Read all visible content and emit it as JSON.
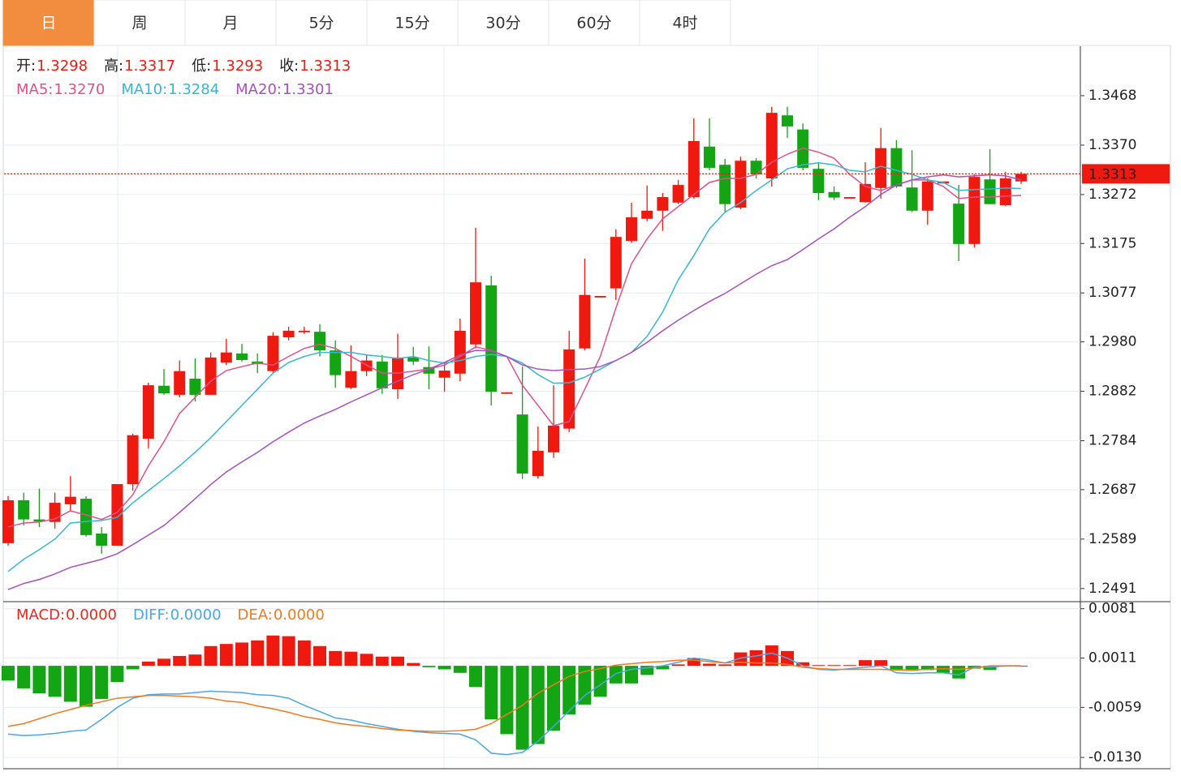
{
  "tabs": [
    "日",
    "周",
    "月",
    "5分",
    "15分",
    "30分",
    "60分",
    "4时"
  ],
  "active_tab": 0,
  "chart_data": [
    {
      "type": "candlestick",
      "readout": [
        {
          "name": "开:",
          "value": 1.3298
        },
        {
          "name": "高:",
          "value": 1.3317
        },
        {
          "name": "低:",
          "value": 1.3293
        },
        {
          "name": "收:",
          "value": 1.3313
        }
      ],
      "open": [
        1.2581,
        1.2666,
        1.2628,
        1.2623,
        1.2658,
        1.2669,
        1.26,
        1.2576,
        1.2698,
        1.2788,
        1.2893,
        1.2875,
        1.2907,
        1.2875,
        1.2939,
        1.2957,
        1.2941,
        1.2922,
        1.2989,
        1.2999,
        1.3,
        1.2963,
        1.2889,
        1.2922,
        1.2941,
        1.2886,
        1.2949,
        1.293,
        1.2909,
        1.2917,
        1.2975,
        1.3092,
        1.2877,
        1.2836,
        1.2714,
        1.2761,
        1.2808,
        1.2967,
        1.3068,
        1.3086,
        1.318,
        1.3224,
        1.324,
        1.3256,
        1.3267,
        1.3367,
        1.3331,
        1.3246,
        1.3339,
        1.3304,
        1.3429,
        1.3401,
        1.3323,
        1.3277,
        1.3264,
        1.3257,
        1.3285,
        1.3364,
        1.3286,
        1.324,
        1.3294,
        1.3254,
        1.3174,
        1.3302,
        1.3251,
        1.3298
      ],
      "high": [
        1.2674,
        1.2681,
        1.2689,
        1.2681,
        1.2714,
        1.2674,
        1.2613,
        1.2698,
        1.2798,
        1.2899,
        1.2926,
        1.2943,
        1.2947,
        1.2959,
        1.2986,
        1.2976,
        1.2957,
        1.2999,
        1.301,
        1.301,
        1.3015,
        1.2983,
        1.2973,
        1.2955,
        1.2954,
        1.2996,
        1.297,
        1.2971,
        1.2938,
        1.3026,
        1.3206,
        1.3111,
        1.288,
        1.2931,
        1.2812,
        1.2894,
        1.3002,
        1.3145,
        1.3071,
        1.3203,
        1.3256,
        1.329,
        1.3275,
        1.3301,
        1.3423,
        1.3423,
        1.3343,
        1.3347,
        1.3344,
        1.3446,
        1.3446,
        1.3413,
        1.3336,
        1.3288,
        1.3267,
        1.3336,
        1.3404,
        1.338,
        1.336,
        1.3304,
        1.3298,
        1.3291,
        1.3312,
        1.3362,
        1.3317,
        1.3317
      ],
      "low": [
        1.2576,
        1.2616,
        1.2613,
        1.261,
        1.2645,
        1.2594,
        1.256,
        1.2576,
        1.2685,
        1.2769,
        1.2875,
        1.287,
        1.2862,
        1.2875,
        1.2934,
        1.2941,
        1.2918,
        1.2918,
        1.2983,
        1.2996,
        1.2951,
        1.2889,
        1.2886,
        1.2912,
        1.2877,
        1.2867,
        1.2934,
        1.2886,
        1.2881,
        1.2902,
        1.2967,
        1.2854,
        1.2877,
        1.2708,
        1.2709,
        1.275,
        1.2801,
        1.2963,
        1.3068,
        1.3063,
        1.3176,
        1.3219,
        1.32,
        1.3253,
        1.3264,
        1.332,
        1.3237,
        1.3243,
        1.3304,
        1.3288,
        1.3384,
        1.332,
        1.3261,
        1.3261,
        1.3264,
        1.3256,
        1.3264,
        1.3285,
        1.3237,
        1.3212,
        1.3294,
        1.314,
        1.3167,
        1.3253,
        1.3249,
        1.3293
      ],
      "close": [
        1.2666,
        1.2628,
        1.2624,
        1.2661,
        1.2673,
        1.2597,
        1.2576,
        1.2698,
        1.2795,
        1.2894,
        1.2878,
        1.2922,
        1.2875,
        1.2949,
        1.2959,
        1.2944,
        1.2936,
        1.2992,
        1.3002,
        1.3002,
        1.2963,
        1.2914,
        1.2922,
        1.2943,
        1.2888,
        1.2949,
        1.2941,
        1.2917,
        1.2923,
        1.3002,
        1.3098,
        1.2881,
        1.288,
        1.2719,
        1.2764,
        1.2814,
        1.2965,
        1.3073,
        1.3071,
        1.3188,
        1.3227,
        1.324,
        1.3267,
        1.3291,
        1.3378,
        1.3325,
        1.3253,
        1.3339,
        1.3312,
        1.3434,
        1.3407,
        1.3325,
        1.3275,
        1.3266,
        1.3267,
        1.3293,
        1.3364,
        1.3288,
        1.324,
        1.3298,
        1.3298,
        1.3174,
        1.3307,
        1.3253,
        1.3304,
        1.3313
      ],
      "up_color": "#f0190f",
      "down_color": "#14a514",
      "series": [
        {
          "name": "MA5:",
          "legend_value": "1.3270",
          "color": "#e0508c",
          "values": [
            1.2613,
            1.2621,
            1.2623,
            1.2629,
            1.2645,
            1.2637,
            1.2628,
            1.2642,
            1.2677,
            1.2734,
            1.2782,
            1.2838,
            1.287,
            1.2902,
            1.2923,
            1.2931,
            1.2938,
            1.2934,
            1.2951,
            1.2967,
            1.2975,
            1.2967,
            1.2951,
            1.2934,
            1.2918,
            1.2918,
            1.2922,
            1.2926,
            1.2934,
            1.2951,
            1.297,
            1.2963,
            1.2951,
            1.2894,
            1.2854,
            1.2814,
            1.2822,
            1.2886,
            1.2951,
            1.3047,
            1.3135,
            1.3184,
            1.3224,
            1.3248,
            1.3272,
            1.3296,
            1.3304,
            1.3304,
            1.3312,
            1.3336,
            1.3352,
            1.3364,
            1.3356,
            1.3344,
            1.3312,
            1.3288,
            1.328,
            1.3291,
            1.3301,
            1.3301,
            1.3288,
            1.3264,
            1.3267,
            1.3267,
            1.3269,
            1.327
          ]
        },
        {
          "name": "MA10:",
          "legend_value": "1.3284",
          "color": "#37b7d2",
          "values": [
            1.2525,
            1.2549,
            1.2568,
            1.2589,
            1.2621,
            1.2624,
            1.2626,
            1.2632,
            1.2661,
            1.2685,
            1.2709,
            1.2734,
            1.2761,
            1.279,
            1.2822,
            1.2854,
            1.2886,
            1.2918,
            1.2939,
            1.2951,
            1.2959,
            1.2959,
            1.2959,
            1.2954,
            1.2951,
            1.2947,
            1.2951,
            1.2943,
            1.2938,
            1.2943,
            1.2951,
            1.2955,
            1.2951,
            1.2938,
            1.2915,
            1.2898,
            1.2899,
            1.291,
            1.2926,
            1.2943,
            1.2959,
            1.2991,
            1.3039,
            1.3103,
            1.3151,
            1.3204,
            1.3237,
            1.3256,
            1.328,
            1.3301,
            1.3323,
            1.3331,
            1.3335,
            1.3331,
            1.332,
            1.3317,
            1.3328,
            1.332,
            1.3312,
            1.3301,
            1.3296,
            1.328,
            1.3282,
            1.3283,
            1.3285,
            1.3284
          ]
        },
        {
          "name": "MA20:",
          "legend_value": "1.3301",
          "color": "#a651bd",
          "values": [
            1.2489,
            1.2501,
            1.2509,
            1.252,
            1.2533,
            1.2541,
            1.2549,
            1.256,
            1.2578,
            1.2597,
            1.2616,
            1.2642,
            1.2669,
            1.2697,
            1.2722,
            1.2742,
            1.2761,
            1.2782,
            1.2801,
            1.2819,
            1.2833,
            1.2846,
            1.2861,
            1.2875,
            1.2889,
            1.2902,
            1.2915,
            1.2926,
            1.2939,
            1.2954,
            1.2963,
            1.2962,
            1.2951,
            1.2934,
            1.2926,
            1.2923,
            1.2925,
            1.2926,
            1.2931,
            1.2943,
            1.2959,
            1.2979,
            1.3002,
            1.3023,
            1.3042,
            1.306,
            1.3076,
            1.3095,
            1.3114,
            1.3131,
            1.3143,
            1.3163,
            1.3184,
            1.3204,
            1.3227,
            1.3248,
            1.3272,
            1.3291,
            1.3301,
            1.3307,
            1.3311,
            1.3307,
            1.3309,
            1.3311,
            1.3309,
            1.3301
          ]
        }
      ],
      "last_price": 1.3313,
      "last_price_color": "#f0190f",
      "ylim": [
        1.2465,
        1.3566
      ],
      "yticks": [
        1.3468,
        {
          "value": 1.337,
          "label": "1.3370"
        },
        1.3272,
        1.3175,
        1.3077,
        {
          "value": 1.298,
          "label": "1.2980"
        },
        1.2882,
        1.2784,
        1.2687,
        1.2589,
        1.2491
      ],
      "grid": true
    },
    {
      "type": "macd",
      "up_color": "#f0190f",
      "down_color": "#14a514",
      "series": [
        {
          "name": "MACD:",
          "legend_value": "0.0000",
          "color": "#e8281e",
          "kind": "bar",
          "values": [
            -0.0021,
            -0.0032,
            -0.0039,
            -0.0044,
            -0.0051,
            -0.0058,
            -0.0047,
            -0.0023,
            -0.0005,
            0.0006,
            0.001,
            0.0014,
            0.0016,
            0.0028,
            0.0031,
            0.0033,
            0.0036,
            0.0043,
            0.0042,
            0.0036,
            0.0028,
            0.0021,
            0.002,
            0.0017,
            0.0013,
            0.0013,
            0.0004,
            -0.0002,
            -0.0005,
            -0.001,
            -0.003,
            -0.0076,
            -0.0097,
            -0.0119,
            -0.0111,
            -0.0092,
            -0.0069,
            -0.0055,
            -0.0044,
            -0.0025,
            -0.0025,
            -0.0013,
            -0.0005,
            0.0002,
            0.0011,
            0.0003,
            0.0002,
            0.0019,
            0.0022,
            0.0029,
            0.0021,
            0.0005,
            0.0001,
            0.0001,
            0.0001,
            0.0008,
            0.0008,
            -0.0005,
            -0.0007,
            -0.0006,
            -0.001,
            -0.0018,
            -0.0004,
            -0.0006,
            -0.0001,
            0
          ]
        },
        {
          "name": "DIFF:",
          "legend_value": "0.0000",
          "color": "#4aa6e8",
          "kind": "line",
          "values": [
            -0.0097,
            -0.0099,
            -0.0098,
            -0.0096,
            -0.0093,
            -0.0091,
            -0.0076,
            -0.0059,
            -0.0046,
            -0.0041,
            -0.004,
            -0.004,
            -0.0038,
            -0.0036,
            -0.0037,
            -0.0038,
            -0.0041,
            -0.0042,
            -0.0046,
            -0.0056,
            -0.0065,
            -0.0074,
            -0.0077,
            -0.0082,
            -0.0086,
            -0.009,
            -0.0093,
            -0.0095,
            -0.0096,
            -0.0097,
            -0.0105,
            -0.0124,
            -0.0126,
            -0.0123,
            -0.0107,
            -0.0086,
            -0.0064,
            -0.0042,
            -0.0027,
            -0.0011,
            -0.0005,
            -0.0003,
            0,
            0.0005,
            0.0011,
            0.0008,
            0.0004,
            0.0011,
            0.0014,
            0.0018,
            0.0011,
            0,
            -0.0005,
            -0.0006,
            -0.0004,
            -0.0002,
            0,
            -0.001,
            -0.0011,
            -0.001,
            -0.001,
            -0.0013,
            -0.0002,
            -0.0002,
            0,
            0
          ]
        },
        {
          "name": "DEA:",
          "legend_value": "0.0000",
          "color": "#f07a1e",
          "kind": "line",
          "values": [
            -0.0086,
            -0.0082,
            -0.0075,
            -0.0068,
            -0.0062,
            -0.0056,
            -0.0051,
            -0.0046,
            -0.0044,
            -0.0042,
            -0.0042,
            -0.0043,
            -0.0044,
            -0.0046,
            -0.005,
            -0.0052,
            -0.0057,
            -0.0061,
            -0.0066,
            -0.0072,
            -0.0076,
            -0.0081,
            -0.0084,
            -0.0086,
            -0.0089,
            -0.0091,
            -0.0092,
            -0.0093,
            -0.0093,
            -0.0092,
            -0.009,
            -0.0082,
            -0.0069,
            -0.0056,
            -0.0039,
            -0.0027,
            -0.0015,
            -0.0008,
            -0.0004,
            0.0001,
            0.0003,
            0.0005,
            0.0006,
            0.0008,
            0.0008,
            0.0006,
            0.0004,
            0.0005,
            0.0004,
            0.0004,
            0.0002,
            -0.0002,
            -0.0004,
            -0.0005,
            -0.0005,
            -0.0005,
            -0.0005,
            -0.0006,
            -0.0006,
            -0.0005,
            -0.0004,
            -0.0005,
            -0.0003,
            0,
            0,
            0
          ]
        }
      ],
      "ylim": [
        -0.0146,
        0.0091
      ],
      "yticks": [
        0.0081,
        0.0011,
        -0.0059,
        {
          "value": -0.013,
          "label": "-0.0130"
        }
      ],
      "grid": true
    }
  ]
}
